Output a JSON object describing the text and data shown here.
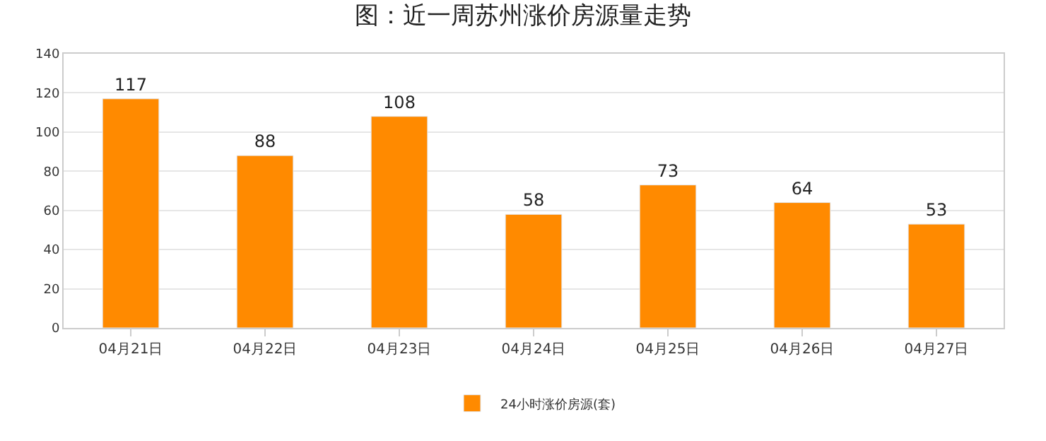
{
  "chart_data": {
    "type": "bar",
    "title": "图：近一周苏州涨价房源量走势",
    "categories": [
      "04月21日",
      "04月22日",
      "04月23日",
      "04月24日",
      "04月25日",
      "04月26日",
      "04月27日"
    ],
    "series": [
      {
        "name": "24小时涨价房源(套)",
        "color": "#ff8a00",
        "values": [
          117,
          88,
          108,
          58,
          73,
          64,
          53
        ]
      }
    ],
    "ylim": [
      0,
      140
    ],
    "yticks": [
      0,
      20,
      40,
      60,
      80,
      100,
      120,
      140
    ],
    "grid": "y",
    "legend": "bottom",
    "data_labels": true
  }
}
